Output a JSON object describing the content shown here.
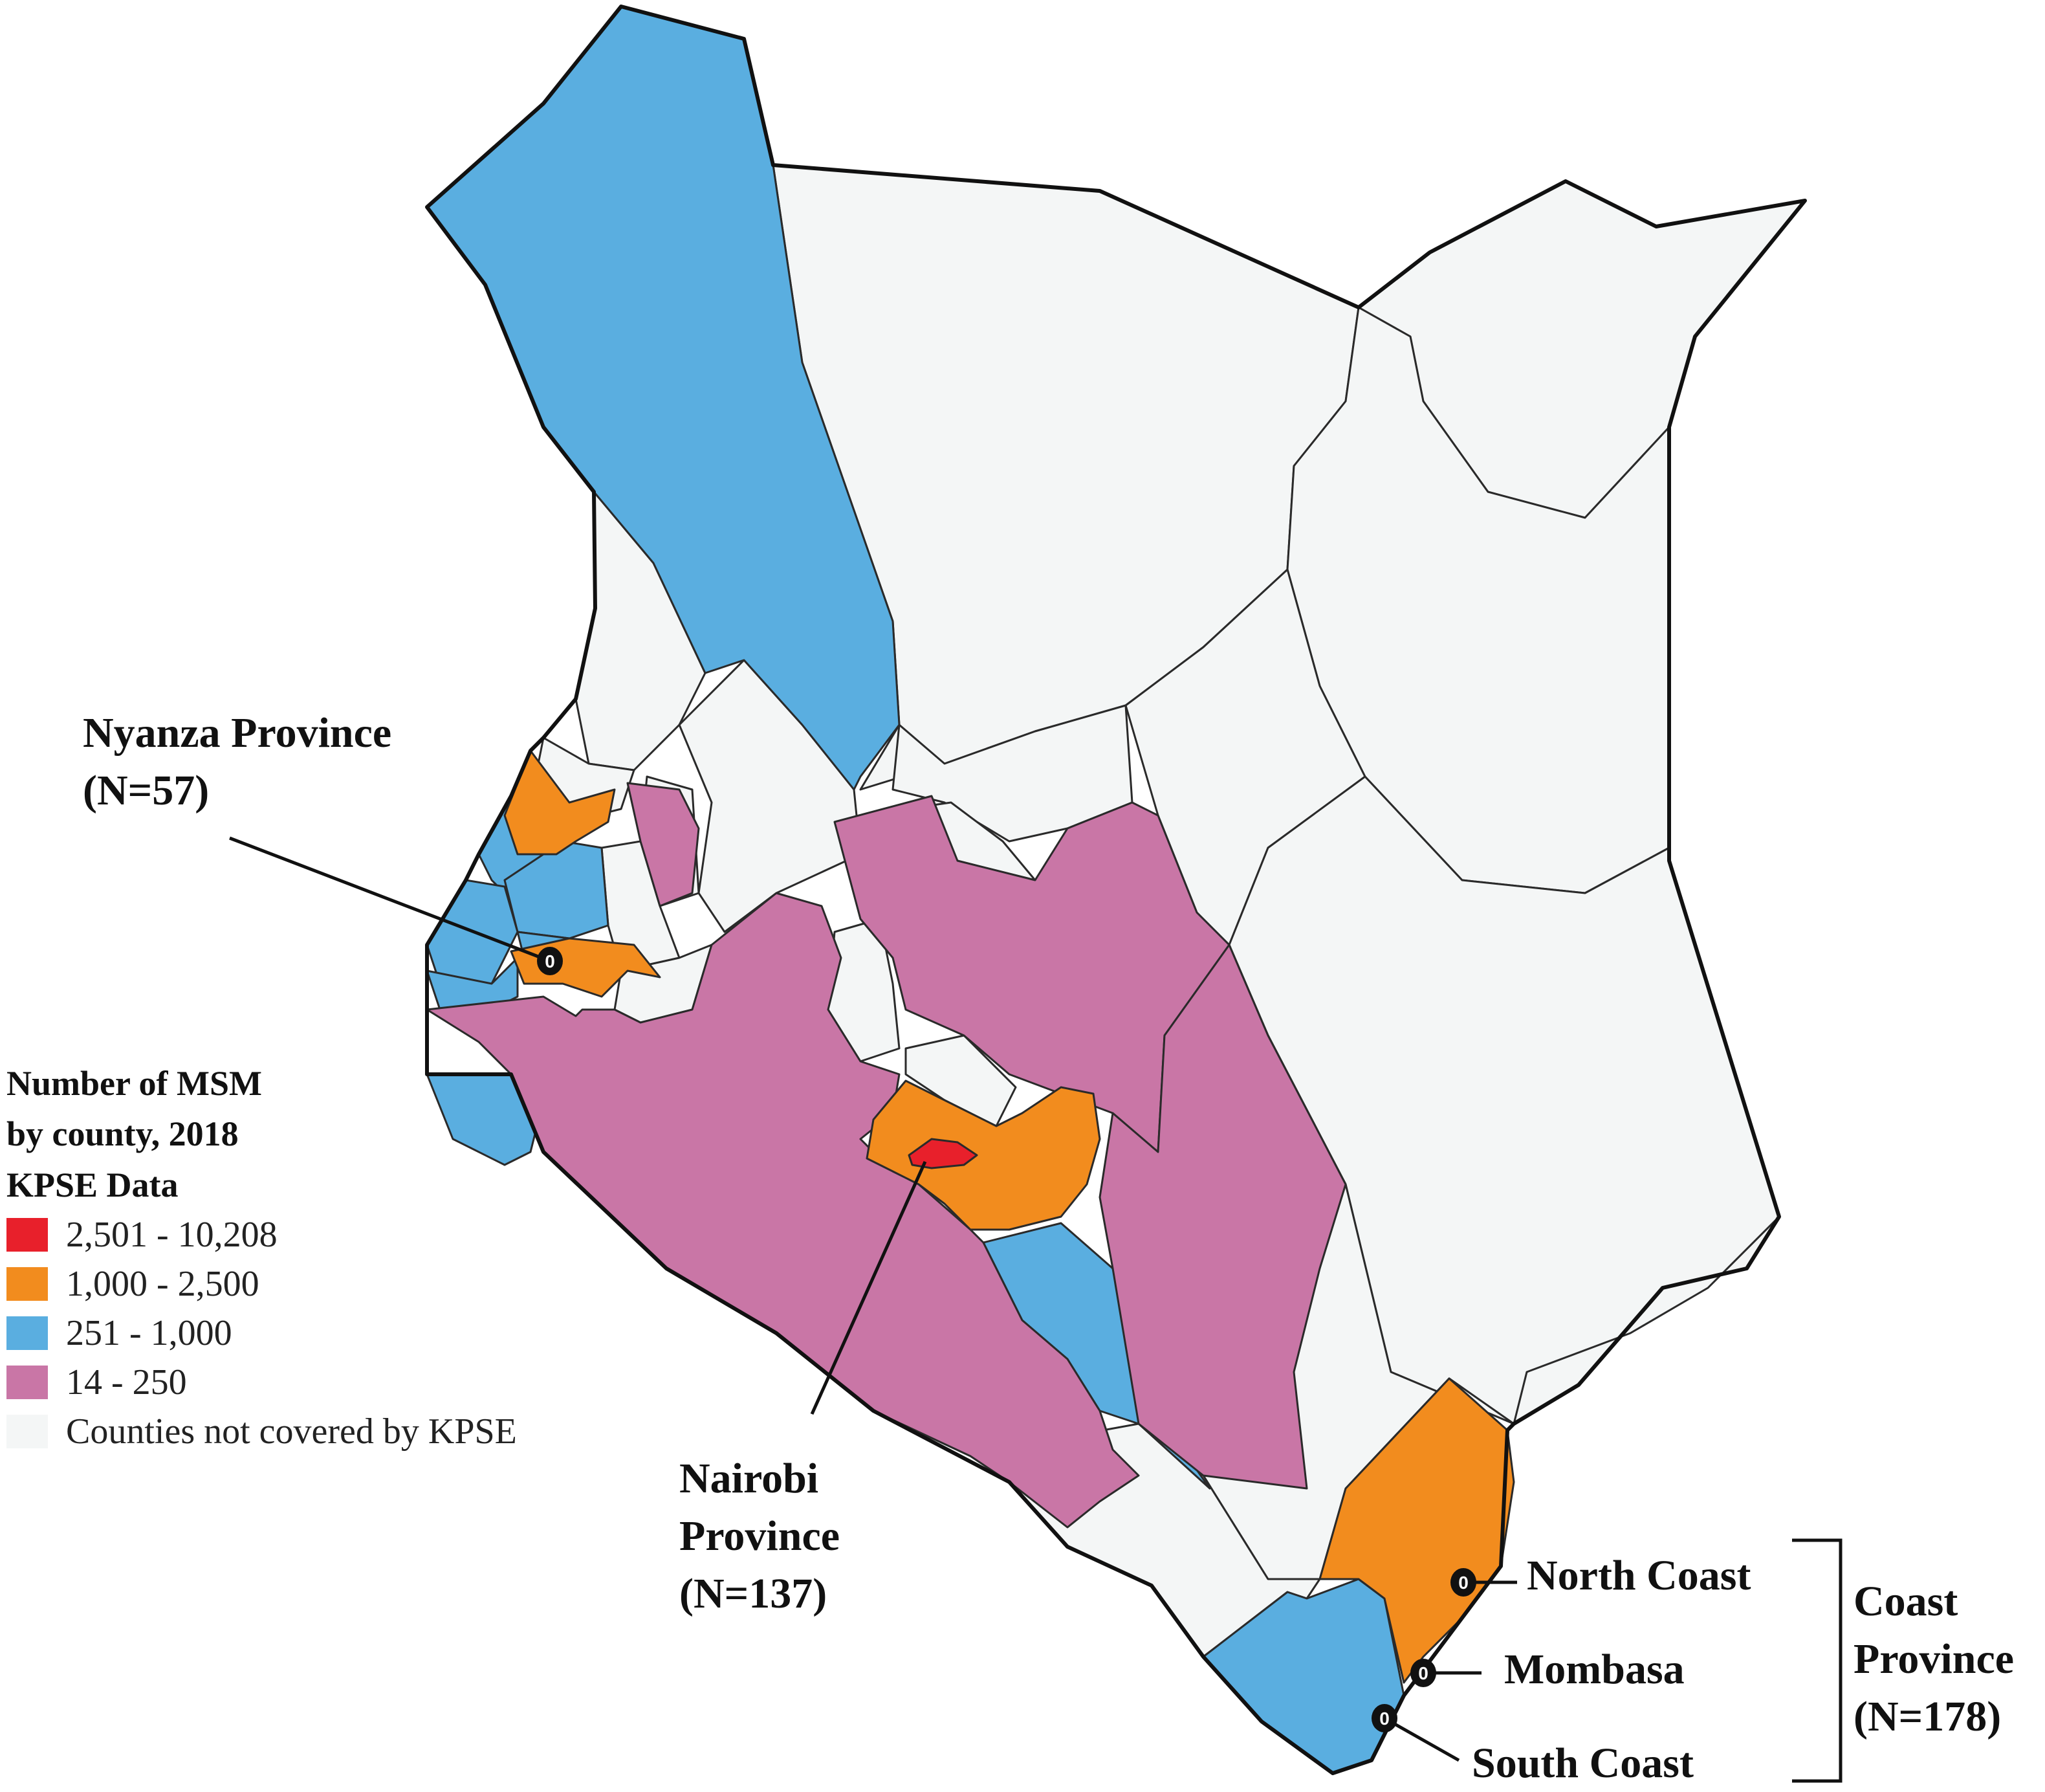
{
  "legend": {
    "title_lines": [
      "Number of MSM",
      "by county, 2018",
      "KPSE Data"
    ],
    "items": [
      {
        "label": "2,501 - 10,208",
        "color": "#e8202b"
      },
      {
        "label": "1,000 - 2,500",
        "color": "#f28c1e"
      },
      {
        "label": "251 - 1,000",
        "color": "#5aaee0"
      },
      {
        "label": "14 - 250",
        "color": "#c976a6"
      },
      {
        "label": "Counties not covered by KPSE",
        "color": "#f4f6f6"
      }
    ]
  },
  "callouts": {
    "nyanza": {
      "name": "Nyanza Province",
      "n": "(N=57)"
    },
    "nairobi": {
      "name_line1": "Nairobi",
      "name_line2": "Province",
      "n": "(N=137)"
    },
    "north_coast": "North Coast",
    "mombasa": "Mombasa",
    "south_coast": "South Coast",
    "coast_province": {
      "line1": "Coast",
      "line2": "Province",
      "n": "(N=178)"
    }
  },
  "marker_label": "0"
}
